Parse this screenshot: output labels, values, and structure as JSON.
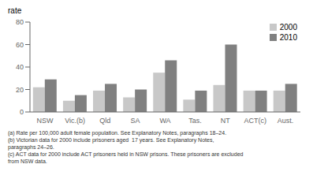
{
  "chart_data": {
    "type": "bar",
    "y_label": "rate",
    "categories": [
      "NSW",
      "Vic.(b)",
      "Qld",
      "SA",
      "WA",
      "Tas.",
      "NT",
      "ACT(c)",
      "Aust."
    ],
    "series": [
      {
        "name": "2000",
        "color": "#c8c8c8",
        "values": [
          22,
          10,
          19,
          13,
          35,
          11,
          24,
          19,
          19
        ]
      },
      {
        "name": "2010",
        "color": "#808080",
        "values": [
          29,
          15,
          25,
          20,
          46,
          19,
          60,
          19,
          25
        ]
      }
    ],
    "ylim": [
      0,
      80
    ],
    "yticks": [
      0,
      20,
      40,
      60,
      80
    ],
    "grid": false,
    "legend": "upper right",
    "annotations": [
      "(a) Rate per 100,000 adult female population. See Explanatory Notes, paragraphs 18–24.",
      "(b) Victorian data for 2000 include prisoners aged  17 years. See Explanatory Notes,",
      "paragraphs 24–26.",
      "(c) ACT data for 2000 include ACT prisoners held in NSW prisons. These prisoners are excluded",
      "from NSW data."
    ]
  }
}
